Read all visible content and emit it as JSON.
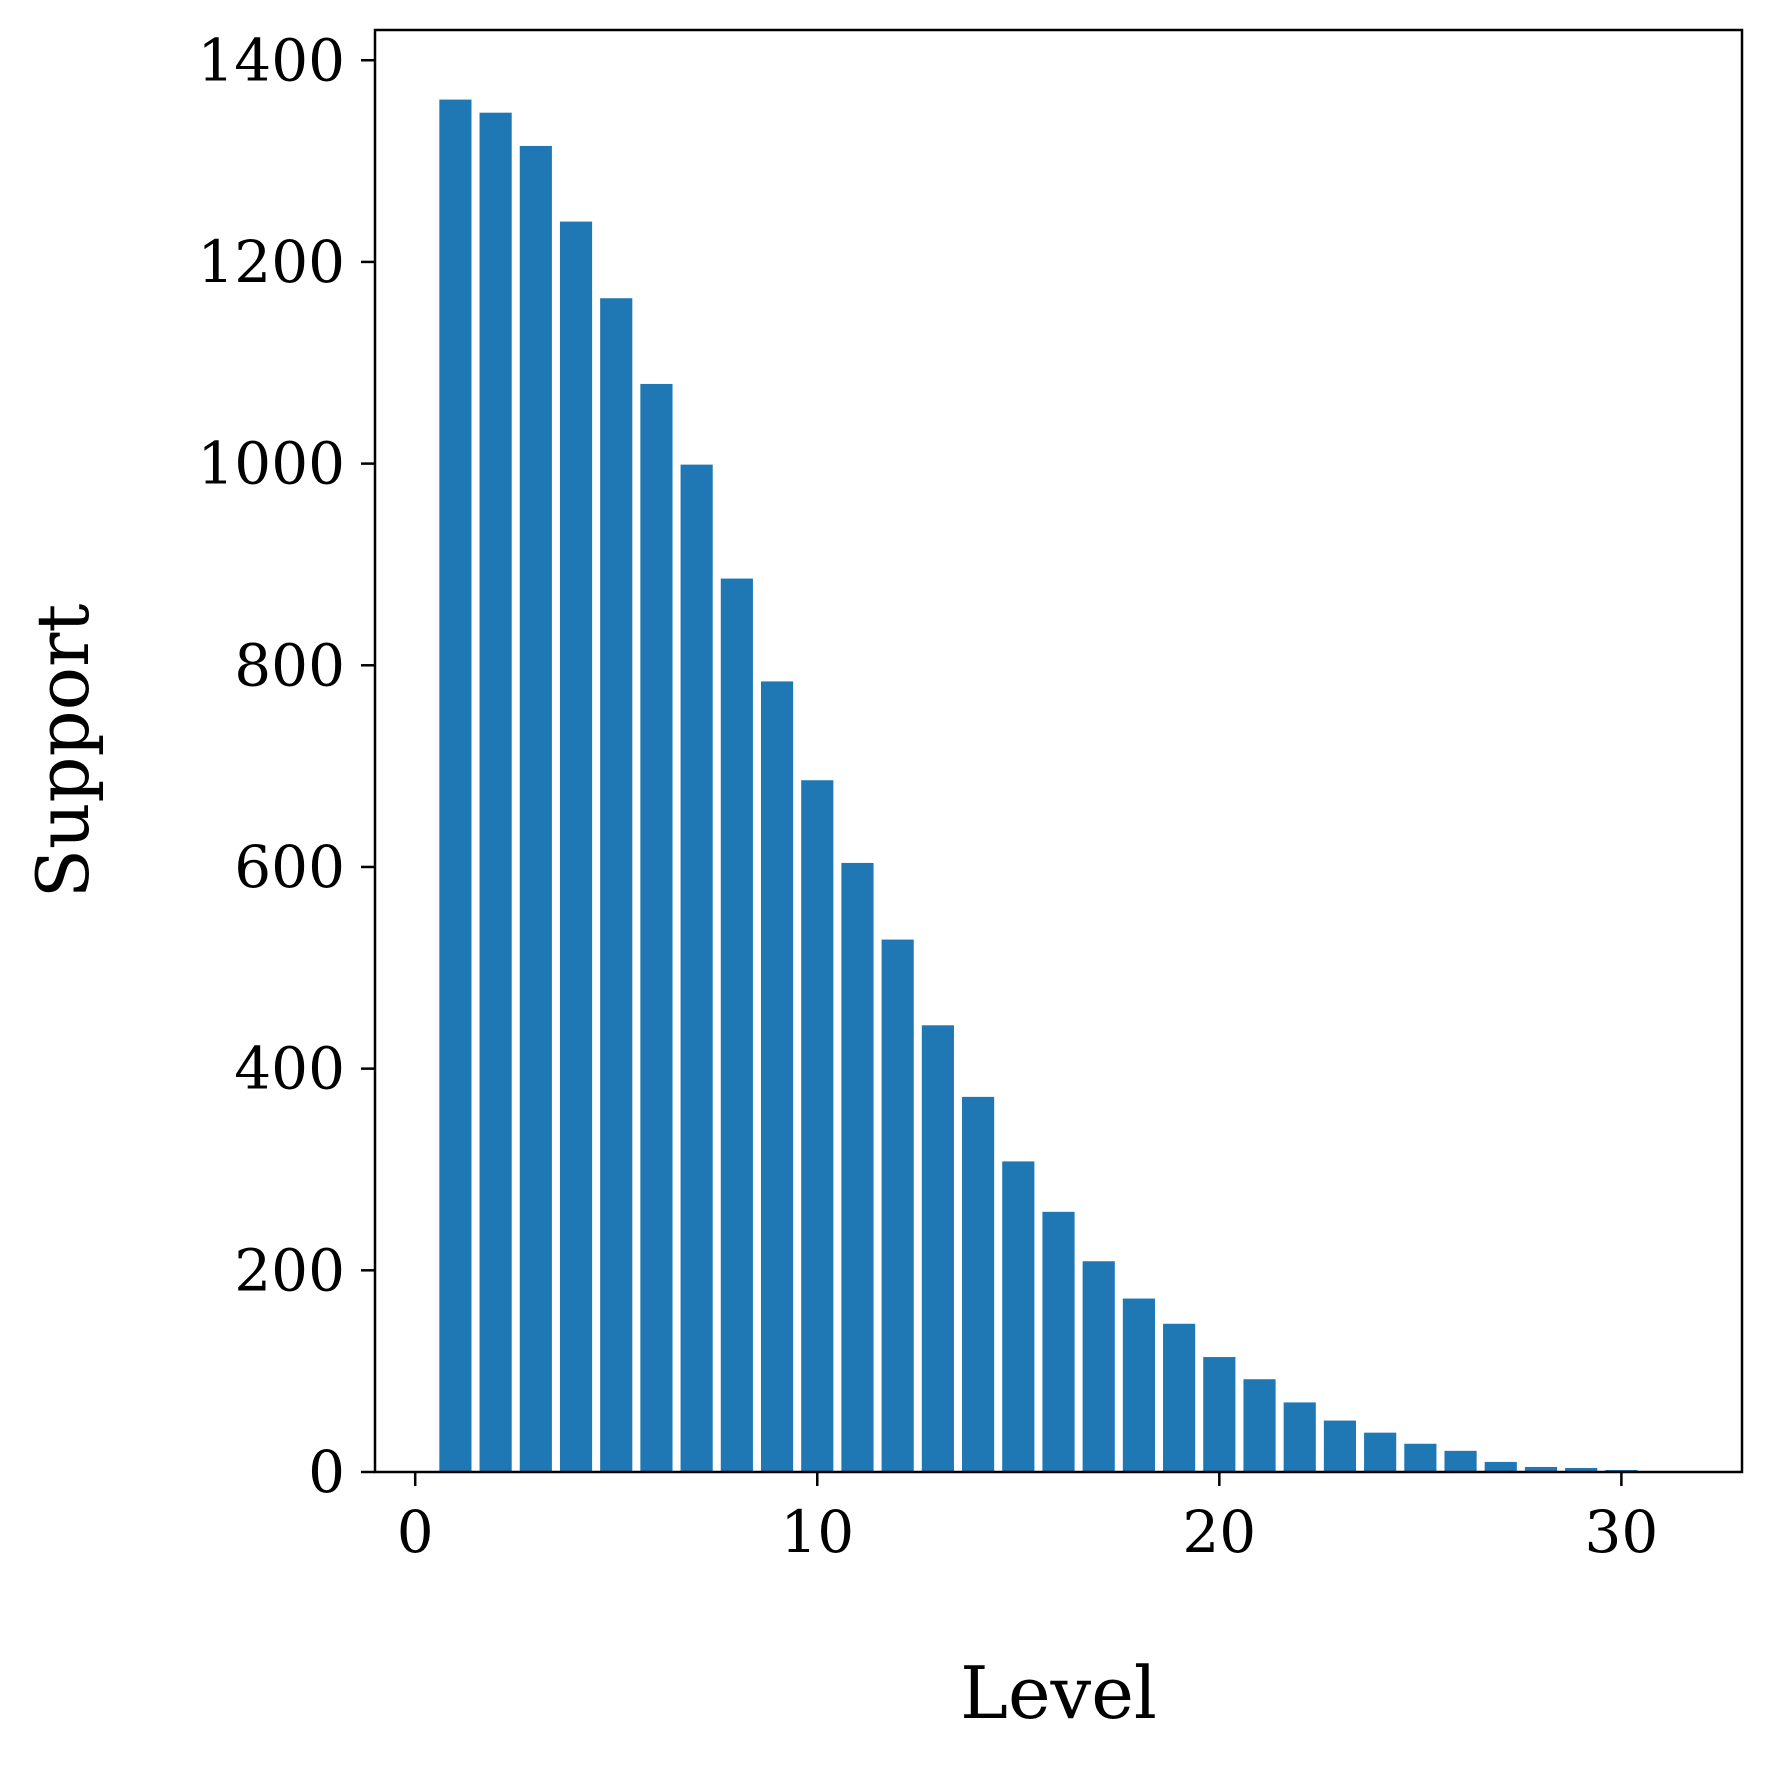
{
  "chart_data": {
    "type": "bar",
    "title": "",
    "xlabel": "Level",
    "ylabel": "Support",
    "x": [
      1,
      2,
      3,
      4,
      5,
      6,
      7,
      8,
      9,
      10,
      11,
      12,
      13,
      14,
      15,
      16,
      17,
      18,
      19,
      20,
      21,
      22,
      23,
      24,
      25,
      26,
      27,
      28,
      29,
      30,
      31
    ],
    "values": [
      1361,
      1348,
      1315,
      1240,
      1164,
      1079,
      999,
      886,
      784,
      686,
      604,
      528,
      443,
      372,
      308,
      258,
      209,
      172,
      147,
      114,
      92,
      69,
      51,
      39,
      28,
      21,
      10,
      5,
      4,
      2,
      0
    ],
    "xlim": [
      -1,
      33
    ],
    "ylim": [
      0,
      1430
    ],
    "xticks": [
      "0",
      "10",
      "20",
      "30"
    ],
    "yticks": [
      "0",
      "200",
      "400",
      "600",
      "800",
      "1000",
      "1200",
      "1400"
    ],
    "bar_color": "#1f77b4",
    "grid": false,
    "legend": "none"
  }
}
